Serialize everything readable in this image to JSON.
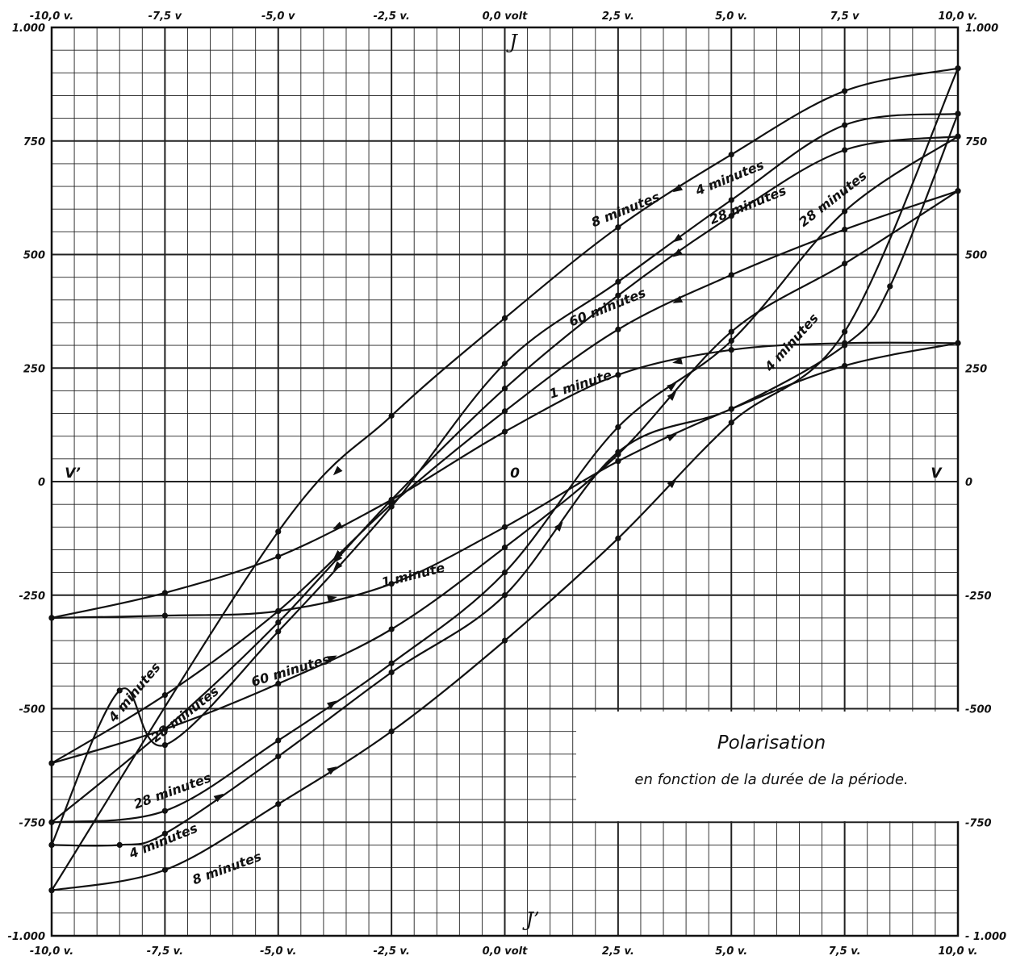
{
  "chart_data": {
    "type": "line",
    "title": "Polarisation",
    "subtitle": "en fonction de la durée de la période.",
    "y_axis_letter_top": "J",
    "y_axis_letter_bottom": "J’",
    "x_axis_letter_left": "V’",
    "x_axis_letter_right": "V",
    "origin_label": "0",
    "xlim": [
      -10,
      10
    ],
    "ylim": [
      -1000,
      1000
    ],
    "grid": true,
    "x_ticks_top": [
      "-10,0 v.",
      "-7,5 v",
      "-5,0 v",
      "-2,5 v.",
      "0,0 volt",
      "2,5 v.",
      "5,0 v.",
      "7,5 v",
      "10,0 v."
    ],
    "x_ticks_bottom": [
      "-10,0 v.",
      "-7,5 v.",
      "-5,0 v.",
      "-2,5 v.",
      "0,0 volt",
      "2,5 v.",
      "5,0 v.",
      "7,5 v.",
      "10,0 v."
    ],
    "x_tick_values": [
      -10,
      -7.5,
      -5,
      -2.5,
      0,
      2.5,
      5,
      7.5,
      10
    ],
    "y_ticks_left": [
      "1.000",
      "750",
      "500",
      "250",
      "0",
      "-250",
      "-500",
      "-750",
      "-1.000"
    ],
    "y_ticks_right": [
      "1.000",
      "750",
      "500",
      "250",
      "0",
      "-250",
      "-500",
      "-750",
      "- 1.000"
    ],
    "y_tick_values": [
      1000,
      750,
      500,
      250,
      0,
      -250,
      -500,
      -750,
      -1000
    ],
    "series": [
      {
        "name": "1 minute",
        "upper": {
          "x": [
            10,
            7.5,
            5,
            2.5,
            0,
            -2.5,
            -5,
            -7.5,
            -10
          ],
          "y": [
            305,
            305,
            290,
            235,
            110,
            -40,
            -165,
            -245,
            -300
          ]
        },
        "lower": {
          "x": [
            -10,
            -7.5,
            -5,
            -2.5,
            0,
            2.5,
            5,
            7.5,
            10
          ],
          "y": [
            -300,
            -295,
            -285,
            -225,
            -100,
            45,
            160,
            255,
            305
          ]
        }
      },
      {
        "name": "60 minutes",
        "upper": {
          "x": [
            10,
            7.5,
            5,
            2.5,
            0,
            -2.5,
            -5,
            -7.5,
            -10
          ],
          "y": [
            640,
            555,
            455,
            335,
            155,
            -50,
            -285,
            -470,
            -620
          ]
        },
        "lower": {
          "x": [
            -10,
            -7.5,
            -5,
            -2.5,
            0,
            2.5,
            5,
            7.5,
            10
          ],
          "y": [
            -620,
            -545,
            -445,
            -325,
            -145,
            60,
            330,
            480,
            640
          ]
        }
      },
      {
        "name": "28 minutes",
        "upper": {
          "x": [
            10,
            7.5,
            5,
            2.5,
            0,
            -2.5,
            -5,
            -7.5,
            -10
          ],
          "y": [
            760,
            730,
            585,
            410,
            205,
            -40,
            -310,
            -545,
            -750
          ]
        },
        "lower": {
          "x": [
            -10,
            -7.5,
            -5,
            -2.5,
            0,
            2.5,
            5,
            7.5,
            10
          ],
          "y": [
            -750,
            -725,
            -570,
            -400,
            -200,
            120,
            310,
            595,
            760
          ]
        }
      },
      {
        "name": "4 minutes",
        "upper": {
          "x": [
            10,
            7.5,
            5,
            2.5,
            0,
            -2.5,
            -5,
            -7.5,
            -8.5,
            -10
          ],
          "y": [
            810,
            785,
            620,
            440,
            260,
            -55,
            -330,
            -580,
            -460,
            -800
          ]
        },
        "lower": {
          "x": [
            -10,
            -8.5,
            -7.5,
            -5,
            -2.5,
            0,
            2.5,
            5,
            7.5,
            8.5,
            10
          ],
          "y": [
            -800,
            -800,
            -775,
            -605,
            -420,
            -250,
            65,
            160,
            300,
            430,
            810
          ]
        }
      },
      {
        "name": "8 minutes",
        "upper": {
          "x": [
            10,
            7.5,
            5,
            2.5,
            0,
            -2.5,
            -5,
            -10
          ],
          "y": [
            910,
            860,
            720,
            560,
            360,
            145,
            -110,
            -900
          ]
        },
        "lower": {
          "x": [
            -10,
            -7.5,
            -5,
            -2.5,
            0,
            2.5,
            5,
            7.5,
            10
          ],
          "y": [
            -900,
            -855,
            -710,
            -550,
            -350,
            -125,
            130,
            330,
            910
          ]
        }
      }
    ],
    "labels": [
      {
        "text": "1 minute",
        "x": 1.7,
        "y": 205,
        "angle": -18
      },
      {
        "text": "1 minute",
        "x": -2.0,
        "y": -215,
        "angle": -14
      },
      {
        "text": "60 minutes",
        "x": 2.3,
        "y": 375,
        "angle": -22
      },
      {
        "text": "60 minutes",
        "x": -4.7,
        "y": -425,
        "angle": -17
      },
      {
        "text": "28 minutes",
        "x": 5.4,
        "y": 600,
        "angle": -22
      },
      {
        "text": "28 minutes",
        "x": 7.3,
        "y": 615,
        "angle": -38
      },
      {
        "text": "28 minutes",
        "x": -7.0,
        "y": -520,
        "angle": -38
      },
      {
        "text": "28 minutes",
        "x": -7.3,
        "y": -690,
        "angle": -20
      },
      {
        "text": "4 minutes",
        "x": 5.0,
        "y": 660,
        "angle": -22
      },
      {
        "text": "4 minutes",
        "x": 6.4,
        "y": 300,
        "angle": -48
      },
      {
        "text": "4 minutes",
        "x": -8.1,
        "y": -470,
        "angle": -50
      },
      {
        "text": "4 minutes",
        "x": -7.5,
        "y": -800,
        "angle": -22
      },
      {
        "text": "8 minutes",
        "x": 2.7,
        "y": 590,
        "angle": -22
      },
      {
        "text": "8 minutes",
        "x": -6.1,
        "y": -860,
        "angle": -20
      }
    ]
  }
}
